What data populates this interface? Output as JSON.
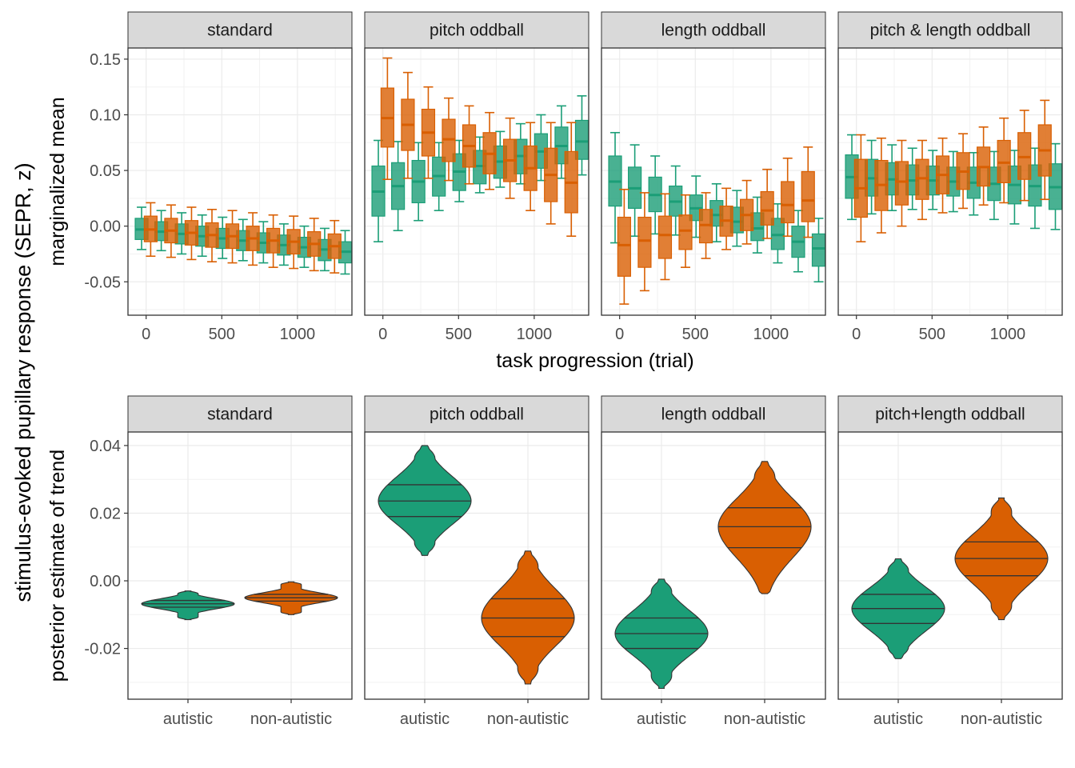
{
  "figure": {
    "shared_ylabel": "stimulus-evoked pupillary response (SEPR, z)"
  },
  "chart_data": [
    {
      "type": "box",
      "ylabel": "marginalized mean",
      "xlabel": "task progression (trial)",
      "xlim": [
        -120,
        1360
      ],
      "ylim": [
        -0.08,
        0.16
      ],
      "yticks": [
        -0.05,
        0.0,
        0.05,
        0.1,
        0.15
      ],
      "ytick_labels": [
        "-0.05",
        "0.00",
        "0.05",
        "0.10",
        "0.15"
      ],
      "xticks": [
        0,
        500,
        1000
      ],
      "xtick_labels": [
        "0",
        "500",
        "1000"
      ],
      "grid": true,
      "colors": {
        "autistic": "#1b9e77",
        "non-autistic": "#d95f02"
      },
      "panels": [
        {
          "title": "standard",
          "series": [
            {
              "name": "autistic",
              "x": [
                -30,
                100,
                235,
                370,
                505,
                640,
                775,
                910,
                1045,
                1180,
                1315
              ],
              "median": [
                -0.003,
                -0.005,
                -0.007,
                -0.009,
                -0.011,
                -0.013,
                -0.015,
                -0.017,
                -0.019,
                -0.021,
                -0.023
              ],
              "q1": [
                -0.012,
                -0.013,
                -0.016,
                -0.018,
                -0.02,
                -0.022,
                -0.024,
                -0.026,
                -0.028,
                -0.031,
                -0.033
              ],
              "q3": [
                0.007,
                0.004,
                0.002,
                0.0,
                -0.002,
                -0.004,
                -0.006,
                -0.008,
                -0.01,
                -0.012,
                -0.014
              ],
              "whisker_low": [
                -0.021,
                -0.022,
                -0.025,
                -0.027,
                -0.029,
                -0.031,
                -0.033,
                -0.035,
                -0.037,
                -0.04,
                -0.043
              ],
              "whisker_high": [
                0.017,
                0.014,
                0.012,
                0.01,
                0.008,
                0.006,
                0.004,
                0.002,
                0.0,
                -0.002,
                -0.004
              ]
            },
            {
              "name": "non-autistic",
              "x": [
                30,
                165,
                300,
                435,
                570,
                705,
                840,
                975,
                1110,
                1245
              ],
              "median": [
                -0.003,
                -0.004,
                -0.006,
                -0.008,
                -0.009,
                -0.011,
                -0.013,
                -0.014,
                -0.016,
                -0.018
              ],
              "q1": [
                -0.014,
                -0.015,
                -0.017,
                -0.019,
                -0.02,
                -0.022,
                -0.024,
                -0.025,
                -0.027,
                -0.029
              ],
              "q3": [
                0.009,
                0.007,
                0.005,
                0.003,
                0.002,
                0.0,
                -0.002,
                -0.003,
                -0.005,
                -0.007
              ],
              "whisker_low": [
                -0.027,
                -0.028,
                -0.03,
                -0.032,
                -0.033,
                -0.035,
                -0.037,
                -0.038,
                -0.04,
                -0.042
              ],
              "whisker_high": [
                0.021,
                0.019,
                0.017,
                0.015,
                0.014,
                0.012,
                0.01,
                0.009,
                0.007,
                0.005
              ]
            }
          ]
        },
        {
          "title": "pitch oddball",
          "series": [
            {
              "name": "autistic",
              "x": [
                -30,
                100,
                235,
                370,
                505,
                640,
                775,
                910,
                1045,
                1180,
                1315
              ],
              "median": [
                0.031,
                0.036,
                0.04,
                0.045,
                0.049,
                0.054,
                0.058,
                0.063,
                0.067,
                0.072,
                0.076
              ],
              "q1": [
                0.009,
                0.015,
                0.021,
                0.027,
                0.032,
                0.038,
                0.043,
                0.047,
                0.052,
                0.056,
                0.06
              ],
              "q3": [
                0.054,
                0.057,
                0.059,
                0.062,
                0.065,
                0.068,
                0.072,
                0.078,
                0.083,
                0.089,
                0.095
              ],
              "whisker_low": [
                -0.014,
                -0.004,
                0.005,
                0.014,
                0.022,
                0.03,
                0.035,
                0.038,
                0.041,
                0.043,
                0.046
              ],
              "whisker_high": [
                0.077,
                0.076,
                0.075,
                0.075,
                0.077,
                0.08,
                0.085,
                0.092,
                0.1,
                0.108,
                0.117
              ]
            },
            {
              "name": "non-autistic",
              "x": [
                30,
                165,
                300,
                435,
                570,
                705,
                840,
                975,
                1110,
                1245
              ],
              "median": [
                0.097,
                0.091,
                0.084,
                0.078,
                0.072,
                0.065,
                0.059,
                0.052,
                0.046,
                0.039
              ],
              "q1": [
                0.071,
                0.068,
                0.063,
                0.058,
                0.053,
                0.047,
                0.04,
                0.032,
                0.022,
                0.012
              ],
              "q3": [
                0.124,
                0.114,
                0.105,
                0.096,
                0.091,
                0.084,
                0.078,
                0.072,
                0.07,
                0.067
              ],
              "whisker_low": [
                0.042,
                0.043,
                0.043,
                0.041,
                0.038,
                0.033,
                0.025,
                0.014,
                0.002,
                -0.009
              ],
              "whisker_high": [
                0.151,
                0.138,
                0.125,
                0.115,
                0.108,
                0.102,
                0.097,
                0.093,
                0.093,
                0.093
              ]
            }
          ]
        },
        {
          "title": "length oddball",
          "series": [
            {
              "name": "autistic",
              "x": [
                -30,
                100,
                235,
                370,
                505,
                640,
                775,
                910,
                1045,
                1180,
                1315
              ],
              "median": [
                0.04,
                0.034,
                0.028,
                0.022,
                0.016,
                0.01,
                0.004,
                -0.002,
                -0.008,
                -0.014,
                -0.02
              ],
              "q1": [
                0.018,
                0.016,
                0.013,
                0.009,
                0.005,
                0.0,
                -0.006,
                -0.013,
                -0.021,
                -0.028,
                -0.036
              ],
              "q3": [
                0.063,
                0.053,
                0.044,
                0.036,
                0.028,
                0.023,
                0.017,
                0.012,
                0.007,
                0.0,
                -0.007
              ],
              "whisker_low": [
                -0.015,
                -0.009,
                -0.007,
                -0.008,
                -0.01,
                -0.014,
                -0.018,
                -0.024,
                -0.033,
                -0.041,
                -0.05
              ],
              "whisker_high": [
                0.084,
                0.073,
                0.063,
                0.054,
                0.045,
                0.038,
                0.032,
                0.026,
                0.02,
                0.014,
                0.007
              ]
            },
            {
              "name": "non-autistic",
              "x": [
                30,
                165,
                300,
                435,
                570,
                705,
                840,
                975,
                1110,
                1245
              ],
              "median": [
                -0.017,
                -0.013,
                -0.008,
                -0.004,
                0.001,
                0.005,
                0.01,
                0.014,
                0.019,
                0.023
              ],
              "q1": [
                -0.045,
                -0.037,
                -0.029,
                -0.021,
                -0.015,
                -0.009,
                -0.004,
                0.001,
                0.003,
                0.004
              ],
              "q3": [
                0.008,
                0.008,
                0.009,
                0.01,
                0.015,
                0.018,
                0.024,
                0.031,
                0.04,
                0.049
              ],
              "whisker_low": [
                -0.07,
                -0.058,
                -0.048,
                -0.037,
                -0.029,
                -0.021,
                -0.016,
                -0.011,
                -0.009,
                -0.01
              ],
              "whisker_high": [
                0.033,
                0.03,
                0.029,
                0.028,
                0.03,
                0.034,
                0.041,
                0.051,
                0.061,
                0.071
              ]
            }
          ]
        },
        {
          "title": "pitch & length oddball",
          "series": [
            {
              "name": "autistic",
              "x": [
                -30,
                100,
                235,
                370,
                505,
                640,
                775,
                910,
                1045,
                1180,
                1315
              ],
              "median": [
                0.044,
                0.043,
                0.042,
                0.041,
                0.041,
                0.04,
                0.039,
                0.038,
                0.037,
                0.036,
                0.035
              ],
              "q1": [
                0.025,
                0.027,
                0.028,
                0.028,
                0.028,
                0.027,
                0.025,
                0.023,
                0.02,
                0.018,
                0.015
              ],
              "q3": [
                0.064,
                0.06,
                0.057,
                0.055,
                0.054,
                0.053,
                0.053,
                0.053,
                0.054,
                0.055,
                0.056
              ],
              "whisker_low": [
                0.006,
                0.011,
                0.014,
                0.015,
                0.015,
                0.013,
                0.01,
                0.006,
                0.002,
                -0.002,
                -0.003
              ],
              "whisker_high": [
                0.082,
                0.077,
                0.073,
                0.07,
                0.068,
                0.067,
                0.066,
                0.067,
                0.068,
                0.07,
                0.074
              ]
            },
            {
              "name": "non-autistic",
              "x": [
                30,
                165,
                300,
                435,
                570,
                705,
                840,
                975,
                1110,
                1245
              ],
              "median": [
                0.034,
                0.037,
                0.04,
                0.043,
                0.046,
                0.049,
                0.053,
                0.057,
                0.062,
                0.068
              ],
              "q1": [
                0.008,
                0.014,
                0.019,
                0.024,
                0.029,
                0.033,
                0.036,
                0.039,
                0.042,
                0.045
              ],
              "q3": [
                0.06,
                0.059,
                0.058,
                0.06,
                0.063,
                0.066,
                0.071,
                0.077,
                0.084,
                0.091
              ],
              "whisker_low": [
                -0.014,
                -0.006,
                0.0,
                0.006,
                0.012,
                0.016,
                0.019,
                0.021,
                0.023,
                0.024
              ],
              "whisker_high": [
                0.082,
                0.079,
                0.077,
                0.077,
                0.079,
                0.083,
                0.089,
                0.097,
                0.104,
                0.113
              ]
            }
          ]
        }
      ]
    },
    {
      "type": "violin",
      "ylabel": "posterior estimate of trend",
      "ylim": [
        -0.035,
        0.044
      ],
      "yticks": [
        -0.02,
        0.0,
        0.02,
        0.04
      ],
      "ytick_labels": [
        "-0.02",
        "0.00",
        "0.02",
        "0.04"
      ],
      "categories": [
        "autistic",
        "non-autistic"
      ],
      "grid": true,
      "colors": {
        "autistic": "#1b9e77",
        "non-autistic": "#d95f02"
      },
      "panels": [
        {
          "title": "standard",
          "violins": [
            {
              "group": "autistic",
              "min": -0.0115,
              "q1": -0.0078,
              "median": -0.0068,
              "q3": -0.0058,
              "max": -0.003
            },
            {
              "group": "non-autistic",
              "min": -0.01,
              "q1": -0.006,
              "median": -0.005,
              "q3": -0.004,
              "max": -0.0003
            }
          ]
        },
        {
          "title": "pitch oddball",
          "violins": [
            {
              "group": "autistic",
              "min": 0.0075,
              "q1": 0.019,
              "median": 0.0236,
              "q3": 0.0284,
              "max": 0.04
            },
            {
              "group": "non-autistic",
              "min": -0.0305,
              "q1": -0.0165,
              "median": -0.011,
              "q3": -0.0053,
              "max": 0.0088
            }
          ]
        },
        {
          "title": "length oddball",
          "violins": [
            {
              "group": "autistic",
              "min": -0.0318,
              "q1": -0.02,
              "median": -0.0156,
              "q3": -0.011,
              "max": 0.0005
            },
            {
              "group": "non-autistic",
              "min": -0.0038,
              "q1": 0.0098,
              "median": 0.016,
              "q3": 0.0216,
              "max": 0.0353
            }
          ]
        },
        {
          "title": "pitch+length oddball",
          "violins": [
            {
              "group": "autistic",
              "min": -0.023,
              "q1": -0.0126,
              "median": -0.0082,
              "q3": -0.004,
              "max": 0.0065
            },
            {
              "group": "non-autistic",
              "min": -0.0115,
              "q1": 0.0015,
              "median": 0.0066,
              "q3": 0.0115,
              "max": 0.0245
            }
          ]
        }
      ]
    }
  ]
}
